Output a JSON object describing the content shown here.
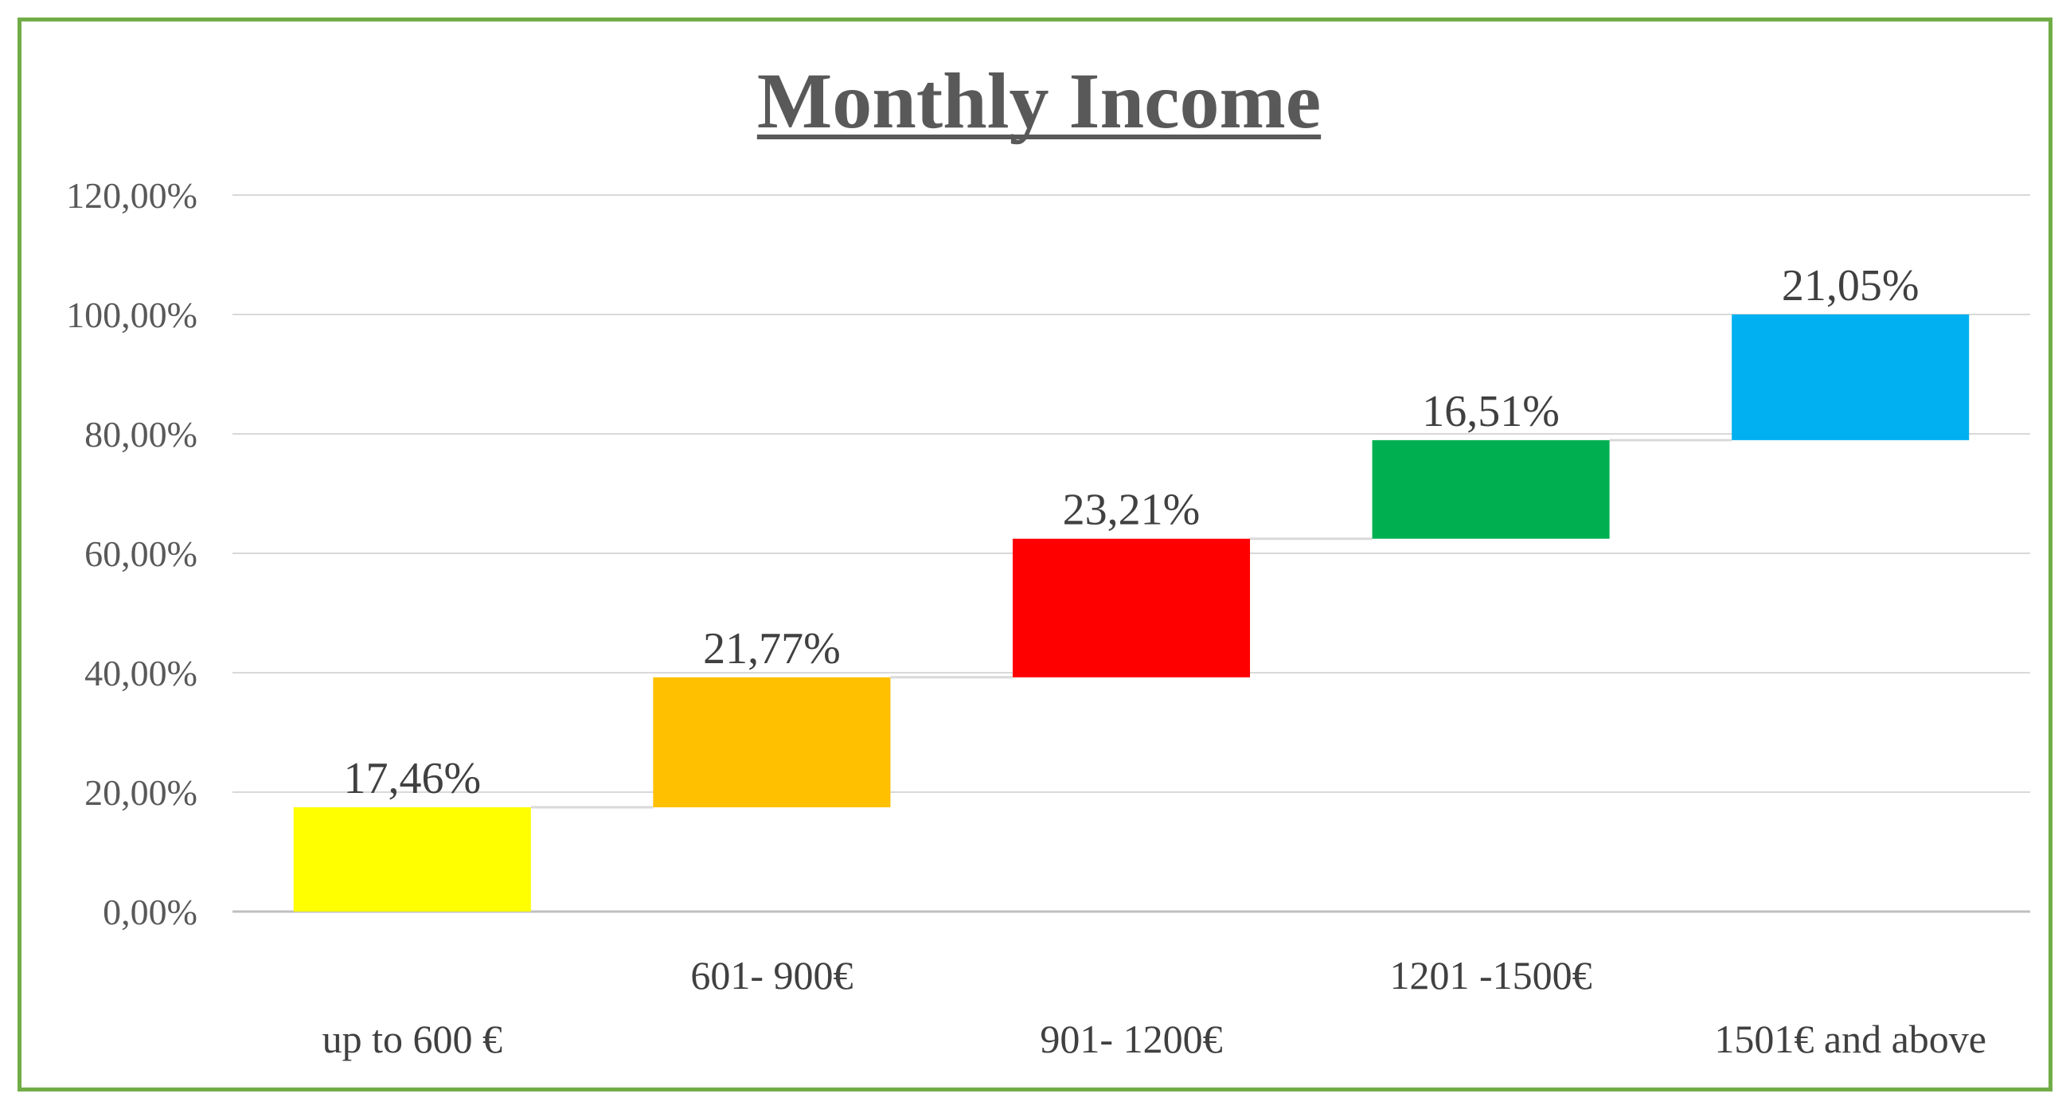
{
  "chart_data": {
    "type": "bar",
    "subtype": "waterfall",
    "title": "Monthly Income",
    "xlabel": "",
    "ylabel": "",
    "ylim": [
      0,
      120
    ],
    "yticks": [
      "0,00%",
      "20,00%",
      "40,00%",
      "60,00%",
      "80,00%",
      "100,00%",
      "120,00%"
    ],
    "grid": true,
    "legend": "none",
    "categories": [
      "up to 600 €",
      "601- 900€",
      "901- 1200€",
      "1201 -1500€",
      "1501€ and above"
    ],
    "values": [
      17.46,
      21.77,
      23.21,
      16.51,
      21.05
    ],
    "data_labels": [
      "17,46%",
      "21,77%",
      "23,21%",
      "16,51%",
      "21,05%"
    ],
    "colors": [
      "#ffff00",
      "#ffc000",
      "#ff0000",
      "#00b050",
      "#00b0f0"
    ],
    "frame_color": "#70ad47"
  }
}
